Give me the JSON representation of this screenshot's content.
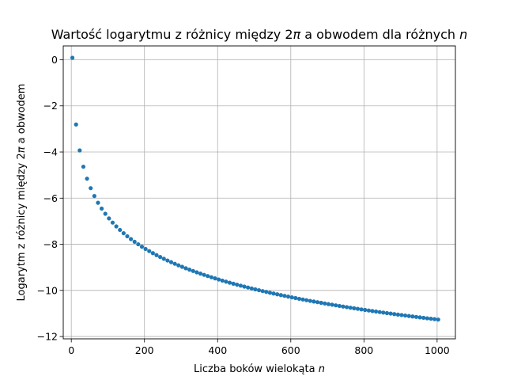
{
  "chart_data": {
    "type": "scatter",
    "title_main": "Wartość logarytmu z różnicy między 2",
    "title_pi": "π",
    "title_rest": " a obwodem dla różnych ",
    "title_n": "n",
    "xlabel_main": "Liczba boków wielokąta ",
    "xlabel_n": "n",
    "ylabel_main": "Logarytm z różnicy między 2",
    "ylabel_pi": "π",
    "ylabel_rest": " a obwodem",
    "xlim": [
      -22,
      1050
    ],
    "ylim": [
      -12.1,
      0.6
    ],
    "xticks": [
      0,
      200,
      400,
      600,
      800,
      1000
    ],
    "xtick_labels": [
      "0",
      "200",
      "400",
      "600",
      "800",
      "1000"
    ],
    "yticks": [
      0,
      -2,
      -4,
      -6,
      -8,
      -10,
      -12
    ],
    "ytick_labels": [
      "0",
      "−2",
      "−4",
      "−6",
      "−8",
      "−10",
      "−12"
    ],
    "grid": true,
    "marker_color": "#1f77b4",
    "x": [
      3,
      13,
      23,
      33,
      43,
      53,
      63,
      73,
      83,
      93,
      103,
      113,
      123,
      133,
      143,
      153,
      163,
      173,
      183,
      193,
      203,
      213,
      223,
      233,
      243,
      253,
      263,
      273,
      283,
      293,
      303,
      313,
      323,
      333,
      343,
      353,
      363,
      373,
      383,
      393,
      403,
      413,
      423,
      433,
      443,
      453,
      463,
      473,
      483,
      493,
      503,
      513,
      523,
      533,
      543,
      553,
      563,
      573,
      583,
      593,
      603,
      613,
      623,
      633,
      643,
      653,
      663,
      673,
      683,
      693,
      703,
      713,
      723,
      733,
      743,
      753,
      763,
      773,
      783,
      793,
      803,
      813,
      823,
      833,
      843,
      853,
      863,
      873,
      883,
      893,
      903,
      913,
      923,
      933,
      943,
      953,
      963,
      973,
      983,
      993,
      1003
    ],
    "y": [
      0.086,
      -2.807,
      -3.93,
      -4.637,
      -5.157,
      -5.568,
      -5.909,
      -6.2,
      -6.453,
      -6.677,
      -6.878,
      -7.06,
      -7.226,
      -7.379,
      -7.521,
      -7.653,
      -7.776,
      -7.892,
      -8.001,
      -8.105,
      -8.203,
      -8.296,
      -8.385,
      -8.47,
      -8.551,
      -8.629,
      -8.704,
      -8.776,
      -8.845,
      -8.912,
      -8.977,
      -9.04,
      -9.101,
      -9.159,
      -9.216,
      -9.272,
      -9.326,
      -9.378,
      -9.429,
      -9.479,
      -9.527,
      -9.575,
      -9.621,
      -9.666,
      -9.71,
      -9.752,
      -9.794,
      -9.835,
      -9.876,
      -9.915,
      -9.954,
      -9.991,
      -10.029,
      -10.065,
      -10.1,
      -10.135,
      -10.17,
      -10.203,
      -10.236,
      -10.269,
      -10.301,
      -10.333,
      -10.364,
      -10.394,
      -10.424,
      -10.454,
      -10.483,
      -10.511,
      -10.539,
      -10.567,
      -10.595,
      -10.621,
      -10.648,
      -10.674,
      -10.7,
      -10.725,
      -10.75,
      -10.775,
      -10.799,
      -10.823,
      -10.847,
      -10.871,
      -10.894,
      -10.917,
      -10.939,
      -10.962,
      -10.984,
      -11.005,
      -11.027,
      -11.048,
      -11.069,
      -11.089,
      -11.11,
      -11.13,
      -11.15,
      -11.17,
      -11.189,
      -11.209,
      -11.228,
      -11.247,
      -11.265
    ]
  }
}
